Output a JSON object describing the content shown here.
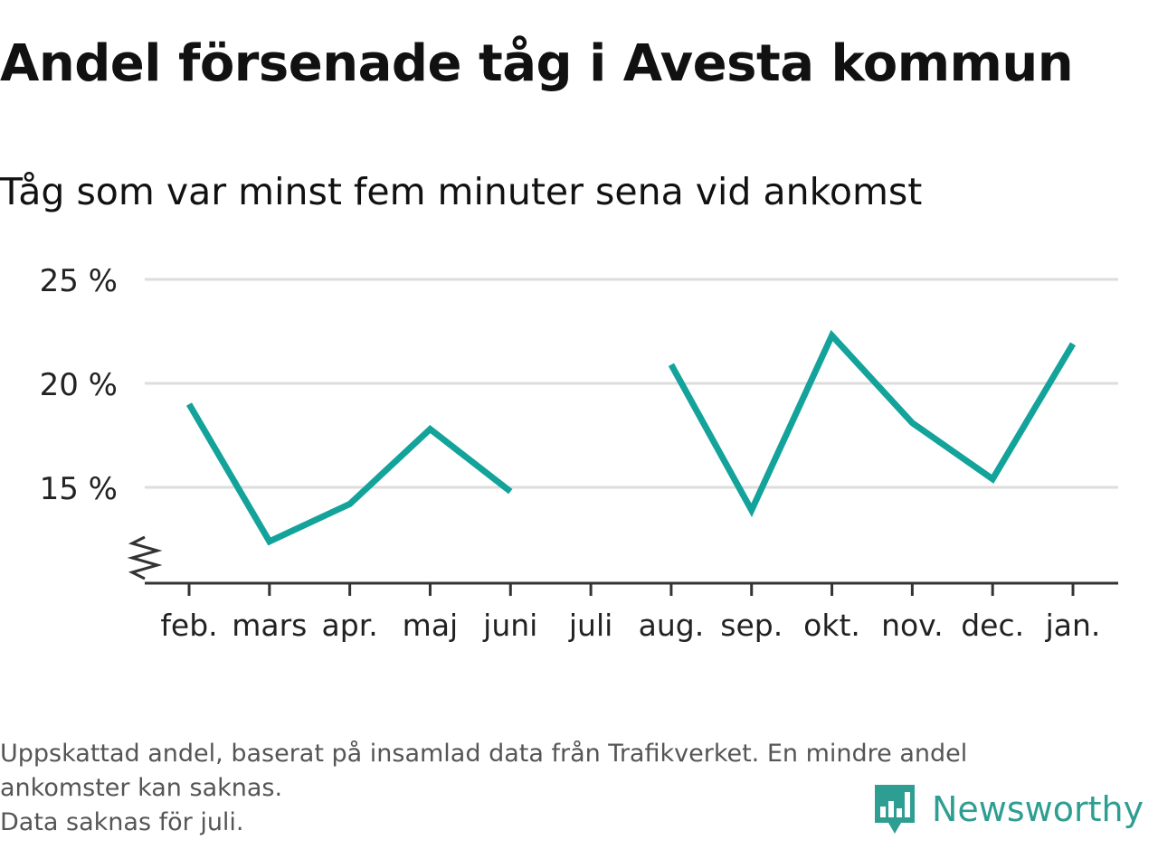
{
  "header": {
    "title": "Andel försenade tåg i Avesta kommun",
    "subtitle": "Tåg som var minst fem minuter sena vid ankomst"
  },
  "chart_data": {
    "type": "line",
    "title": "Andel försenade tåg i Avesta kommun",
    "subtitle": "Tåg som var minst fem minuter sena vid ankomst",
    "xlabel": "",
    "ylabel": "",
    "categories": [
      "feb.",
      "mars",
      "apr.",
      "maj",
      "juni",
      "juli",
      "aug.",
      "sep.",
      "okt.",
      "nov.",
      "dec.",
      "jan."
    ],
    "series": [
      {
        "values": [
          19.0,
          12.4,
          14.2,
          17.8,
          14.8,
          null,
          20.9,
          13.9,
          22.3,
          18.1,
          15.4,
          21.9
        ]
      }
    ],
    "yticks": [
      15,
      20,
      25
    ],
    "ytick_labels": [
      "15 %",
      "20 %",
      "25 %"
    ],
    "ylim": [
      10.5,
      25
    ],
    "y_axis_break": true,
    "grid": true,
    "legend": "none",
    "line_color": "#13a39a",
    "grid_color": "#dddddd",
    "axis_color": "#333333"
  },
  "footer": {
    "note_line1": "Uppskattad andel, baserat på insamlad data från Trafikverket. En mindre andel",
    "note_line2": "ankomster kan saknas.",
    "note_line3": "Data saknas för juli.",
    "brand": "Newsworthy",
    "brand_color": "#2f9e92"
  }
}
